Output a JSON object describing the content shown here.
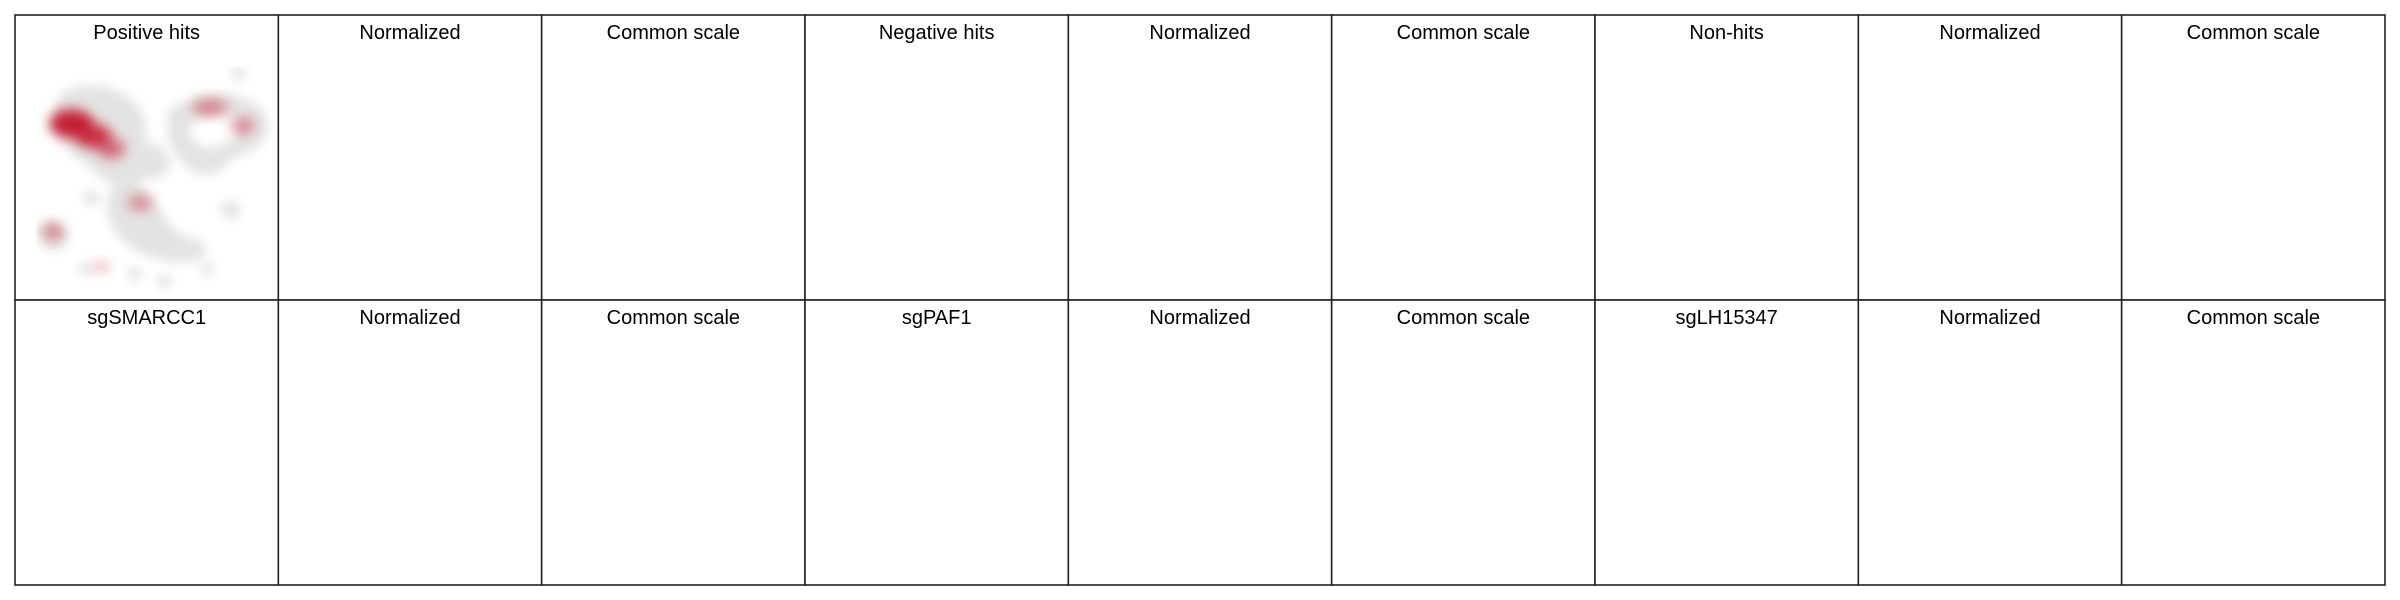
{
  "figure": {
    "rows": [
      {
        "panels": [
          {
            "title": "Positive hits"
          },
          {
            "title": "Normalized"
          },
          {
            "title": "Common scale"
          },
          {
            "title": "Negative hits"
          },
          {
            "title": "Normalized"
          },
          {
            "title": "Common scale"
          },
          {
            "title": "Non-hits"
          },
          {
            "title": "Normalized"
          },
          {
            "title": "Common scale"
          }
        ]
      },
      {
        "panels": [
          {
            "title": "sgSMARCC1"
          },
          {
            "title": "Normalized"
          },
          {
            "title": "Common scale"
          },
          {
            "title": "sgPAF1"
          },
          {
            "title": "Normalized"
          },
          {
            "title": "Common scale"
          },
          {
            "title": "sgLH15347"
          },
          {
            "title": "Normalized"
          },
          {
            "title": "Common scale"
          }
        ]
      }
    ],
    "colors": {
      "background_cells": "#e3e3e3",
      "density_high": "#c0001a",
      "frame": "#222222",
      "text": "#000000"
    }
  }
}
